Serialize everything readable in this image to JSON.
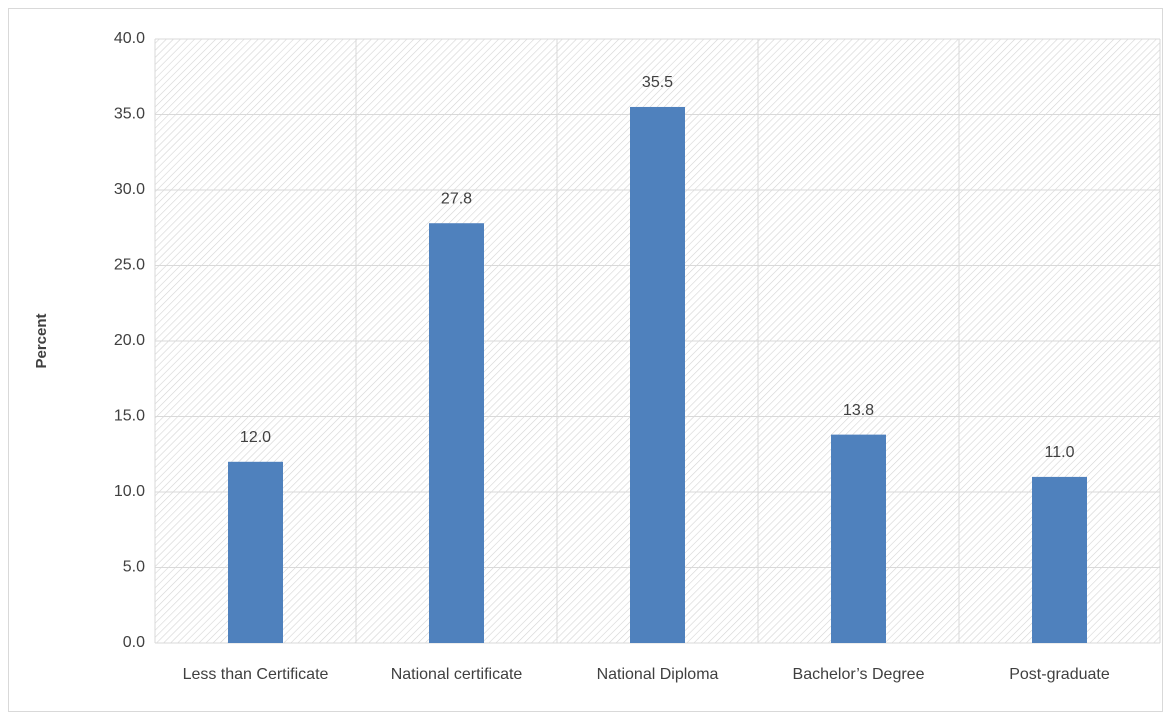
{
  "chart_data": {
    "type": "bar",
    "ylabel": "Percent",
    "categories": [
      "Less than Certificate",
      "National certificate",
      "National Diploma",
      "Bachelor’s Degree",
      "Post-graduate"
    ],
    "values": [
      12.0,
      27.8,
      35.5,
      13.8,
      11.0
    ],
    "value_labels": [
      "12.0",
      "27.8",
      "35.5",
      "13.8",
      "11.0"
    ],
    "color": "#4f81bd",
    "ylim": [
      0,
      40
    ],
    "yticks": [
      {
        "value": 0,
        "label": "0.0"
      },
      {
        "value": 5,
        "label": "5.0"
      },
      {
        "value": 10,
        "label": "10.0"
      },
      {
        "value": 15,
        "label": "15.0"
      },
      {
        "value": 20,
        "label": "20.0"
      },
      {
        "value": 25,
        "label": "25.0"
      },
      {
        "value": 30,
        "label": "30.0"
      },
      {
        "value": 35,
        "label": "35.0"
      },
      {
        "value": 40,
        "label": "40.0"
      }
    ],
    "grid": true
  }
}
